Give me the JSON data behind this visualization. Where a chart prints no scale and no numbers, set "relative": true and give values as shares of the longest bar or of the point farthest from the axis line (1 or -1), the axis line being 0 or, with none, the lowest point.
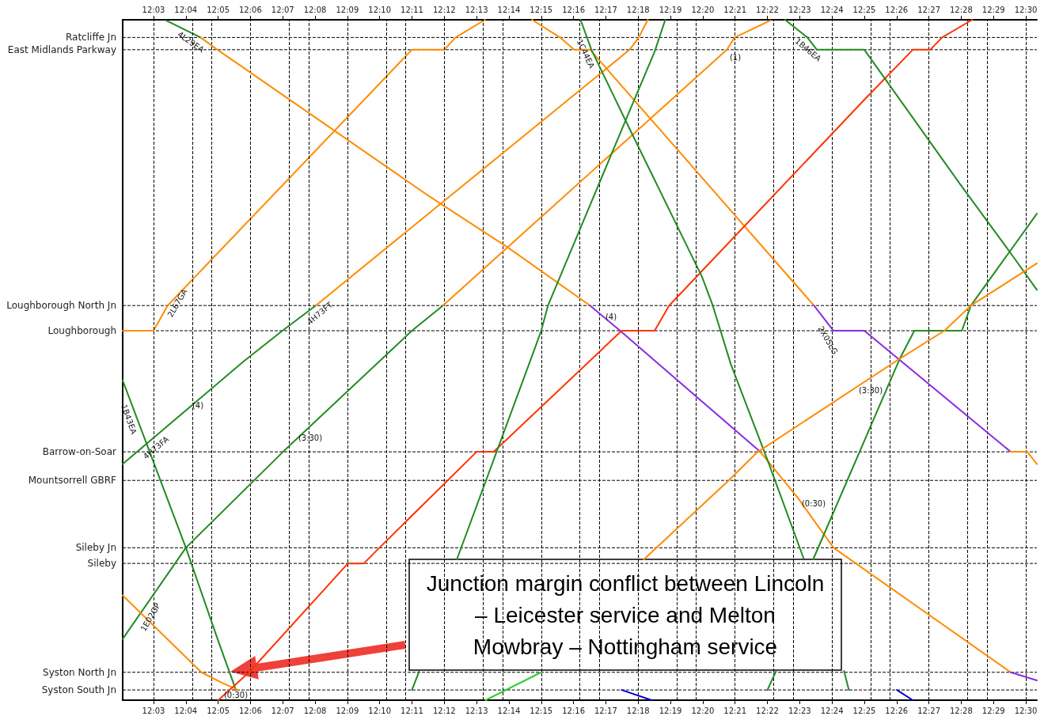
{
  "chart_data": {
    "type": "line",
    "marker": "none",
    "line_style": "solid",
    "grid": "x",
    "relative": true,
    "xlim": [
      12.0341,
      12.5057
    ],
    "xticks": [
      {
        "value": 12.05,
        "label": "12:03"
      },
      {
        "value": 12.066667,
        "label": "12:04"
      },
      {
        "value": 12.083333,
        "label": "12:05"
      },
      {
        "value": 12.1,
        "label": "12:06"
      },
      {
        "value": 12.116667,
        "label": "12:07"
      },
      {
        "value": 12.133333,
        "label": "12:08"
      },
      {
        "value": 12.15,
        "label": "12:09"
      },
      {
        "value": 12.166667,
        "label": "12:10"
      },
      {
        "value": 12.183333,
        "label": "12:11"
      },
      {
        "value": 12.2,
        "label": "12:12"
      },
      {
        "value": 12.216667,
        "label": "12:13"
      },
      {
        "value": 12.233333,
        "label": "12:14"
      },
      {
        "value": 12.25,
        "label": "12:15"
      },
      {
        "value": 12.266667,
        "label": "12:16"
      },
      {
        "value": 12.283333,
        "label": "12:17"
      },
      {
        "value": 12.3,
        "label": "12:18"
      },
      {
        "value": 12.316667,
        "label": "12:19"
      },
      {
        "value": 12.333333,
        "label": "12:20"
      },
      {
        "value": 12.35,
        "label": "12:21"
      },
      {
        "value": 12.366667,
        "label": "12:22"
      },
      {
        "value": 12.383333,
        "label": "12:23"
      },
      {
        "value": 12.4,
        "label": "12:24"
      },
      {
        "value": 12.416667,
        "label": "12:25"
      },
      {
        "value": 12.433333,
        "label": "12:26"
      },
      {
        "value": 12.45,
        "label": "12:27"
      },
      {
        "value": 12.466667,
        "label": "12:28"
      },
      {
        "value": 12.483333,
        "label": "12:29"
      },
      {
        "value": 12.5,
        "label": "12:30"
      }
    ],
    "x2lim": [
      12.0341,
      12.5057
    ],
    "x2ticks": [
      {
        "value": 12.05,
        "label": "12:03"
      },
      {
        "value": 12.066667,
        "label": "12:04"
      },
      {
        "value": 12.083333,
        "label": "12:05"
      },
      {
        "value": 12.1,
        "label": "12:06"
      },
      {
        "value": 12.116667,
        "label": "12:07"
      },
      {
        "value": 12.133333,
        "label": "12:08"
      },
      {
        "value": 12.15,
        "label": "12:09"
      },
      {
        "value": 12.166667,
        "label": "12:10"
      },
      {
        "value": 12.183333,
        "label": "12:11"
      },
      {
        "value": 12.2,
        "label": "12:12"
      },
      {
        "value": 12.216667,
        "label": "12:13"
      },
      {
        "value": 12.233333,
        "label": "12:14"
      },
      {
        "value": 12.25,
        "label": "12:15"
      },
      {
        "value": 12.266667,
        "label": "12:16"
      },
      {
        "value": 12.283333,
        "label": "12:17"
      },
      {
        "value": 12.3,
        "label": "12:18"
      },
      {
        "value": 12.316667,
        "label": "12:19"
      },
      {
        "value": 12.333333,
        "label": "12:20"
      },
      {
        "value": 12.35,
        "label": "12:21"
      },
      {
        "value": 12.366667,
        "label": "12:22"
      },
      {
        "value": 12.383333,
        "label": "12:23"
      },
      {
        "value": 12.4,
        "label": "12:24"
      },
      {
        "value": 12.416667,
        "label": "12:25"
      },
      {
        "value": 12.433333,
        "label": "12:26"
      },
      {
        "value": 12.45,
        "label": "12:27"
      },
      {
        "value": 12.466667,
        "label": "12:28"
      },
      {
        "value": 12.483333,
        "label": "12:29"
      },
      {
        "value": 12.5,
        "label": "12:30"
      }
    ],
    "ref_lines": [
      {
        "axis": "y",
        "value": 0.974,
        "label": "Ratcliffe Jn",
        "color": "#000000",
        "line_style": "dashed"
      },
      {
        "axis": "y",
        "value": 0.956,
        "label": "East Midlands Parkway",
        "color": "#000000",
        "line_style": "dashed"
      },
      {
        "axis": "y",
        "value": 0.58,
        "label": "Loughborough North Jn",
        "color": "#000000",
        "line_style": "dashed"
      },
      {
        "axis": "y",
        "value": 0.543,
        "label": "Loughborough",
        "color": "#000000",
        "line_style": "dashed"
      },
      {
        "axis": "y",
        "value": 0.365,
        "label": "Barrow-on-Soar",
        "color": "#000000",
        "line_style": "dashed"
      },
      {
        "axis": "y",
        "value": 0.323,
        "label": "Mountsorrell GBRF",
        "color": "#000000",
        "line_style": "dashed"
      },
      {
        "axis": "y",
        "value": 0.224,
        "label": "Sileby Jn",
        "color": "#000000",
        "line_style": "dashed"
      },
      {
        "axis": "y",
        "value": 0.201,
        "label": "Sileby",
        "color": "#000000",
        "line_style": "dashed"
      },
      {
        "axis": "y",
        "value": 0.041,
        "label": "Syston North Jn",
        "color": "#000000",
        "line_style": "dashed"
      },
      {
        "axis": "y",
        "value": 0.015,
        "label": "Syston South Jn",
        "color": "#000000",
        "line_style": "dashed"
      }
    ],
    "series": [
      {
        "color": "#ff8c00",
        "x": [
          12.0341,
          12.05,
          12.0573,
          12.1833,
          12.2,
          12.2058,
          12.221
        ],
        "values": [
          0.543,
          0.543,
          0.58,
          0.956,
          0.956,
          0.974,
          1.0
        ]
      },
      {
        "color": "#228b22",
        "x": [
          12.0565,
          12.0743
        ],
        "values": [
          0.999,
          0.974
        ]
      },
      {
        "color": "#ff8c00",
        "x": [
          12.0743,
          12.083,
          12.1915,
          12.233,
          12.2752
        ],
        "values": [
          0.974,
          0.956,
          0.742,
          0.665,
          0.58
        ]
      },
      {
        "color": "#8a2be2",
        "x": [
          12.2752,
          12.2907,
          12.363
        ],
        "values": [
          0.58,
          0.543,
          0.365
        ]
      },
      {
        "color": "#ff8c00",
        "x": [
          12.363,
          12.3825,
          12.4008,
          12.4922
        ],
        "values": [
          0.365,
          0.297,
          0.224,
          0.041
        ]
      },
      {
        "color": "#8a2be2",
        "x": [
          12.4922,
          12.5057
        ],
        "values": [
          0.041,
          0.029
        ]
      },
      {
        "color": "#ff8c00",
        "x": [
          12.2453,
          12.2597,
          12.267,
          12.2752,
          12.3907
        ],
        "values": [
          1.0,
          0.974,
          0.956,
          0.956,
          0.58
        ]
      },
      {
        "color": "#8a2be2",
        "x": [
          12.3907,
          12.4008,
          12.4167,
          12.4922
        ],
        "values": [
          0.58,
          0.543,
          0.543,
          0.365
        ]
      },
      {
        "color": "#ff8c00",
        "x": [
          12.4922,
          12.5008,
          12.5057
        ],
        "values": [
          0.365,
          0.365,
          0.347
        ]
      },
      {
        "color": "#228b22",
        "x": [
          12.0341,
          12.0965,
          12.1165,
          12.1337
        ],
        "values": [
          0.347,
          0.498,
          0.543,
          0.58
        ]
      },
      {
        "color": "#ff8c00",
        "x": [
          12.1337,
          12.2956,
          12.3003,
          12.305
        ],
        "values": [
          0.58,
          0.956,
          0.974,
          1.0
        ]
      },
      {
        "color": "#228b22",
        "x": [
          12.0341,
          12.0667,
          12.1168,
          12.1833,
          12.1993
        ],
        "values": [
          0.09,
          0.224,
          0.365,
          0.543,
          0.58
        ]
      },
      {
        "color": "#ff8c00",
        "x": [
          12.1993,
          12.3458,
          12.3498,
          12.3682
        ],
        "values": [
          0.58,
          0.956,
          0.974,
          0.999
        ]
      },
      {
        "color": "#228b22",
        "x": [
          12.0341,
          12.0667,
          12.0834,
          12.0925
        ],
        "values": [
          0.47,
          0.224,
          0.087,
          0.015
        ]
      },
      {
        "color": "#ff8c00",
        "x": [
          12.0341,
          12.061,
          12.0747,
          12.085,
          12.0937
        ],
        "values": [
          0.154,
          0.079,
          0.041,
          0.026,
          0.015
        ]
      },
      {
        "color": "#ff3300",
        "x": [
          12.0834,
          12.0993,
          12.1503,
          12.1585,
          12.1665,
          12.2167,
          12.2255,
          12.2915,
          12.3085,
          12.316,
          12.4172,
          12.4417,
          12.4507,
          12.4568,
          12.4723
        ],
        "values": [
          0.0,
          0.041,
          0.201,
          0.201,
          0.224,
          0.365,
          0.365,
          0.543,
          0.543,
          0.58,
          0.884,
          0.956,
          0.956,
          0.974,
          1.0
        ]
      },
      {
        "color": "#228b22",
        "x": [
          12.2703,
          12.2759,
          12.2935,
          12.333,
          12.3385,
          12.3478,
          12.367,
          12.3853,
          null,
          12.4062,
          12.4087
        ],
        "values": [
          1.0,
          0.956,
          0.852,
          0.622,
          0.58,
          0.494,
          0.351,
          0.209,
          null,
          0.043,
          0.015
        ]
      },
      {
        "color": "#228b22",
        "x": [
          12.3667,
          12.3712,
          null,
          12.3903,
          12.435,
          12.4425,
          12.467,
          12.4717,
          12.5057
        ],
        "values": [
          0.015,
          0.043,
          null,
          0.207,
          0.502,
          0.543,
          0.543,
          0.58,
          0.715
        ]
      },
      {
        "color": "#228b22",
        "x": [
          12.3758,
          12.3873,
          12.3922,
          12.4167,
          12.4662,
          12.4922,
          12.5057
        ],
        "values": [
          1.0,
          0.974,
          0.956,
          0.956,
          0.758,
          0.657,
          0.603
        ]
      },
      {
        "color": "#228b22",
        "x": [
          12.1833,
          12.187,
          null,
          12.2065,
          12.2467,
          12.25,
          12.2535,
          12.2935,
          12.3085,
          12.314
        ],
        "values": [
          0.015,
          0.042,
          null,
          0.207,
          0.517,
          0.543,
          0.58,
          0.852,
          0.953,
          1.0
        ]
      },
      {
        "color": "#ff8c00",
        "x": [
          12.303,
          12.3467,
          12.3613,
          12.435,
          12.458,
          12.4717,
          12.5057
        ],
        "values": [
          0.207,
          0.323,
          0.364,
          0.502,
          0.543,
          0.58,
          0.642
        ]
      },
      {
        "color": "#32cd32",
        "x": [
          12.2213,
          12.25
        ],
        "values": [
          0.0,
          0.041
        ]
      },
      {
        "color": "#0000cd",
        "x": [
          12.2915,
          12.307
        ],
        "values": [
          0.015,
          0.0
        ]
      },
      {
        "color": "#0000cd",
        "x": [
          12.4335,
          12.4417
        ],
        "values": [
          0.015,
          0.0
        ]
      }
    ],
    "annotations": [
      "Junction margin conflict between Lincoln – Leicester service and Melton Mowbray – Nottingham service",
      "4L29EA",
      "2L67GA",
      "4H73FT",
      "1C44EA",
      "1B46EA",
      "2X05LG",
      "1B43EA",
      "4H73FA",
      "1E02GP",
      "(4)",
      "(3:30)",
      "(1)",
      "(4)",
      "(3:30)",
      "(0:30)",
      "(0:30)"
    ]
  }
}
